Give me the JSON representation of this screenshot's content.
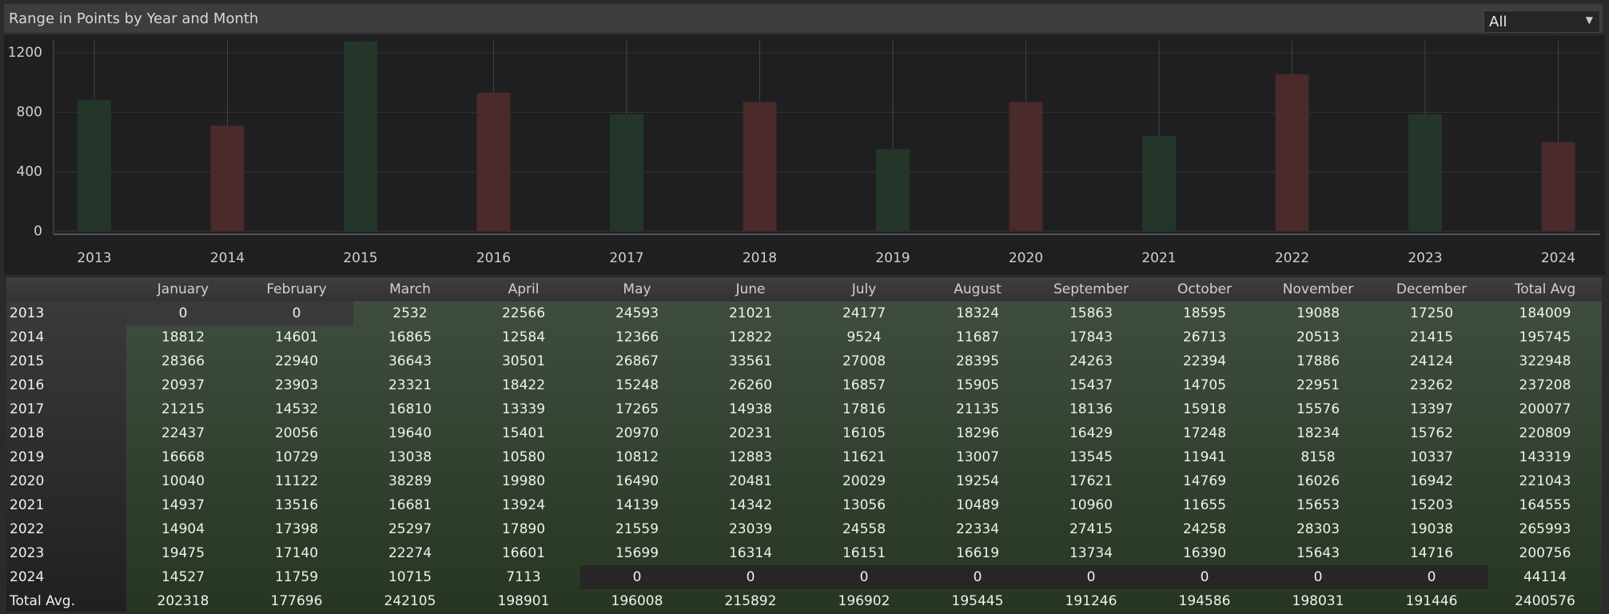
{
  "header": {
    "title": "Range in Points by Year and Month",
    "dropdown": "All"
  },
  "chart_data": {
    "type": "bar",
    "categories": [
      "2013",
      "2014",
      "2015",
      "2016",
      "2017",
      "2018",
      "2019",
      "2020",
      "2021",
      "2022",
      "2023",
      "2024"
    ],
    "values": [
      883,
      710,
      1276,
      931,
      786,
      869,
      552,
      869,
      641,
      1055,
      786,
      600
    ],
    "colors": [
      "#24352a",
      "#4a2a2a",
      "#24352a",
      "#4a2a2a",
      "#24352a",
      "#4a2a2a",
      "#24352a",
      "#4a2a2a",
      "#24352a",
      "#4a2a2a",
      "#24352a",
      "#4a2a2a"
    ],
    "ylim": [
      -20,
      1280
    ],
    "yticks": [
      0,
      400,
      800,
      1200
    ],
    "grid": true
  },
  "table": {
    "columns": [
      "January",
      "February",
      "March",
      "April",
      "May",
      "June",
      "July",
      "August",
      "September",
      "October",
      "November",
      "December",
      "Total Avg"
    ],
    "rows": [
      {
        "label": "2013",
        "values": [
          0,
          0,
          2532,
          22566,
          24593,
          21021,
          24177,
          18324,
          15863,
          18595,
          19088,
          17250,
          184009
        ]
      },
      {
        "label": "2014",
        "values": [
          18812,
          14601,
          16865,
          12584,
          12366,
          12822,
          9524,
          11687,
          17843,
          26713,
          20513,
          21415,
          195745
        ]
      },
      {
        "label": "2015",
        "values": [
          28366,
          22940,
          36643,
          30501,
          26867,
          33561,
          27008,
          28395,
          24263,
          22394,
          17886,
          24124,
          322948
        ]
      },
      {
        "label": "2016",
        "values": [
          20937,
          23903,
          23321,
          18422,
          15248,
          26260,
          16857,
          15905,
          15437,
          14705,
          22951,
          23262,
          237208
        ]
      },
      {
        "label": "2017",
        "values": [
          21215,
          14532,
          16810,
          13339,
          17265,
          14938,
          17816,
          21135,
          18136,
          15918,
          15576,
          13397,
          200077
        ]
      },
      {
        "label": "2018",
        "values": [
          22437,
          20056,
          19640,
          15401,
          20970,
          20231,
          16105,
          18296,
          16429,
          17248,
          18234,
          15762,
          220809
        ]
      },
      {
        "label": "2019",
        "values": [
          16668,
          10729,
          13038,
          10580,
          10812,
          12883,
          11621,
          13007,
          13545,
          11941,
          8158,
          10337,
          143319
        ]
      },
      {
        "label": "2020",
        "values": [
          10040,
          11122,
          38289,
          19980,
          16490,
          20481,
          20029,
          19254,
          17621,
          14769,
          16026,
          16942,
          221043
        ]
      },
      {
        "label": "2021",
        "values": [
          14937,
          13516,
          16681,
          13924,
          14139,
          14342,
          13056,
          10489,
          10960,
          11655,
          15653,
          15203,
          164555
        ]
      },
      {
        "label": "2022",
        "values": [
          14904,
          17398,
          25297,
          17890,
          21559,
          23039,
          24558,
          22334,
          27415,
          24258,
          28303,
          19038,
          265993
        ]
      },
      {
        "label": "2023",
        "values": [
          19475,
          17140,
          22274,
          16601,
          15699,
          16314,
          16151,
          16619,
          13734,
          16390,
          15643,
          14716,
          200756
        ]
      },
      {
        "label": "2024",
        "values": [
          14527,
          11759,
          10715,
          7113,
          0,
          0,
          0,
          0,
          0,
          0,
          0,
          0,
          44114
        ]
      },
      {
        "label": "Total Avg.",
        "values": [
          202318,
          177696,
          242105,
          198901,
          196008,
          215892,
          196902,
          195445,
          191246,
          194586,
          198031,
          191446,
          2400576
        ]
      }
    ]
  }
}
